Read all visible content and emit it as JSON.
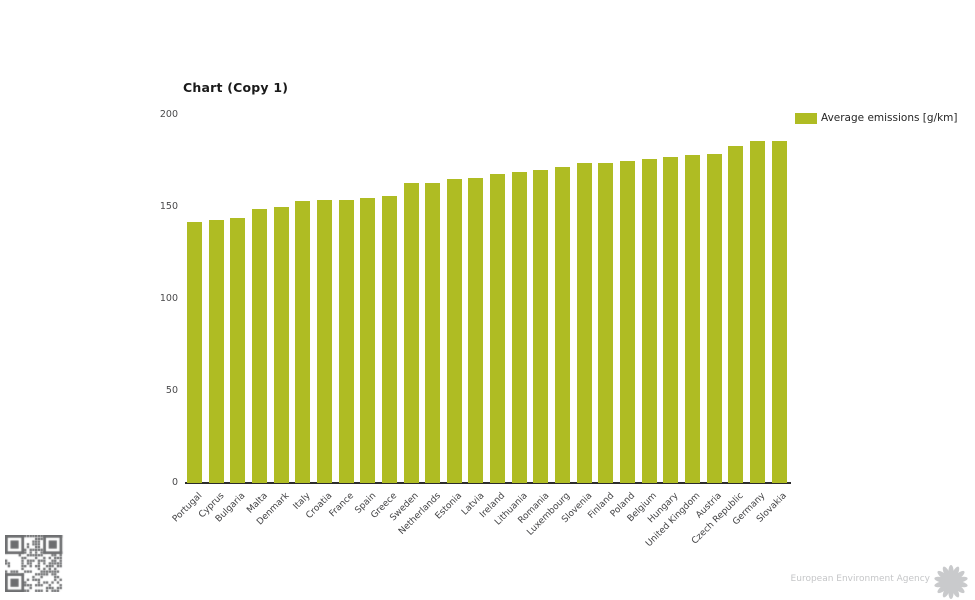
{
  "title": "Chart (Copy 1)",
  "footer": {
    "agency": "European Environment Agency"
  },
  "chart_data": {
    "type": "bar",
    "title": "Chart (Copy 1)",
    "series_name": "Average emissions [g/km]",
    "categories": [
      "Portugal",
      "Cyprus",
      "Bulgaria",
      "Malta",
      "Denmark",
      "Italy",
      "Croatia",
      "France",
      "Spain",
      "Greece",
      "Sweden",
      "Netherlands",
      "Estonia",
      "Latvia",
      "Ireland",
      "Lithuania",
      "Romania",
      "Luxembourg",
      "Slovenia",
      "Finland",
      "Poland",
      "Belgium",
      "Hungary",
      "United Kingdom",
      "Austria",
      "Czech Republic",
      "Germany",
      "Slovakia"
    ],
    "values": [
      142,
      143,
      144,
      149,
      150,
      153,
      154,
      154,
      155,
      156,
      163,
      163,
      165,
      166,
      168,
      169,
      170,
      172,
      174,
      174,
      175,
      176,
      177,
      178,
      179,
      183,
      186,
      186
    ],
    "xlabel": "",
    "ylabel": "",
    "ylim": [
      0,
      200
    ],
    "yticks": [
      0,
      50,
      100,
      150,
      200
    ],
    "bar_color": "#afbc23",
    "grid": false,
    "legend_position": "top-right",
    "sorted": "ascending"
  }
}
